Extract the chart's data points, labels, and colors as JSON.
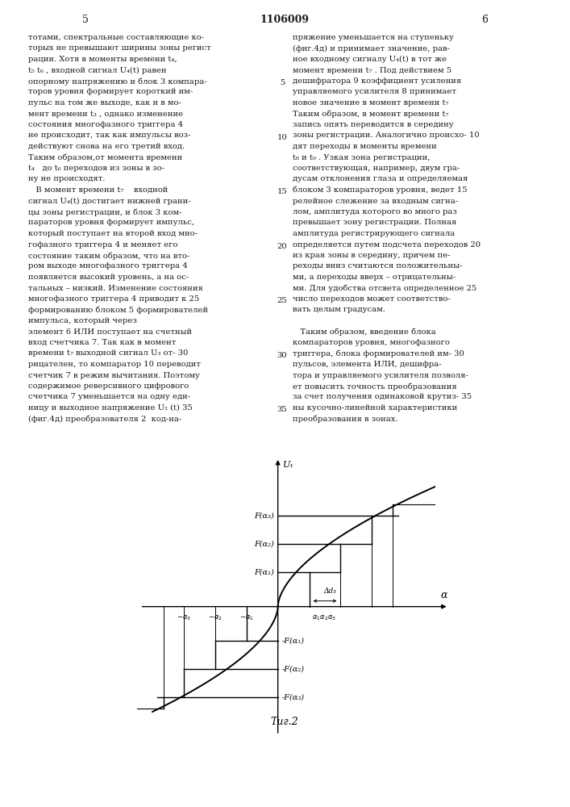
{
  "background_color": "#ffffff",
  "page_number_left": "5",
  "page_number_center": "1106009",
  "page_number_right": "6",
  "fig_caption": "Τиг.2",
  "y_label": "U₁",
  "x_label": "α",
  "delta_label": "Δd₃",
  "F_alpha1_label": "F(α₁)",
  "F_alpha2_label": "F(α₂)",
  "F_alpha3_label": "F(α₃)",
  "neg_F_alpha1_label": "-F(α₁)",
  "neg_F_alpha2_label": "-F(α₂)",
  "neg_F_alpha3_label": "-F(α₃)",
  "line_color": "#000000",
  "text_color": "#1a1a1a",
  "col1_lines": [
    "тотами, спектральные составляющие ко-",
    "торых не превышают ширины зоны регист",
    "рации. Хотя в моменты времени t₄,",
    "t₅ t₆ , входной сигнал U₄(t) равен",
    "опорному напряжению и блок 3 компара-",
    "торов уровня формирует короткий им-",
    "пульс на том же выходе, как и в мо-",
    "мент времени t₃ , однако изменение",
    "состояния многофазного триггера 4",
    "не происходит, так как импульсы воз-",
    "действуют снова на его третий вход.",
    "Таким образом,от момента времени",
    "t₄   до t₆ переходов из зоны в зо-",
    "ну не происходят.",
    "   В момент времени t₇    входной",
    "сигнал U₄(t) достигает нижней грани-",
    "цы зоны регистрации, и блок 3 ком-",
    "параторов уровня формирует импульс,",
    "который поступает на второй вход мно-",
    "гофазного триггера 4 и меняет его",
    "состояние таким образом, что на вто-",
    "ром выходе многофазного триггера 4",
    "появляется высокий уровень, а на ос-",
    "тальных – низкий. Изменение состояния",
    "многофазного триггера 4 приводит к 25",
    "формированию блоком 5 формирователей",
    "импульса, который через",
    "элемент 6 ИЛИ поступает на счетный",
    "вход счетчика 7. Так как в момент",
    "времени t₇ выходной сигнал U₃ от- 30",
    "рицателен, то компаратор 10 переводит",
    "счетчик 7 в режим вычитания. Поэтому",
    "содержимое реверсивного цифрового",
    "счетчика 7 уменьшается на одну еди-",
    "ницу и выходное напряжение U₂ (t) 35",
    "(фиг.4д) преобразователя 2  код-на-"
  ],
  "col2_lines": [
    "пряжение уменьшается на ступеньку",
    "(фиг.4д) и принимает значение, рав-",
    "ное входному сигналу U₄(t) в тот же",
    "момент времени t₇ . Под действием 5",
    "дешифратора 9 коэффициент усиления",
    "управляемого усилителя 8 принимает",
    "новое значение в момент времени t₇",
    "Таким образом, в момент времени t₇",
    "запись опять переводится в середину",
    "зоны регистрации. Аналогично происхо- 10",
    "дят переходы в моменты времени",
    "t₈ и t₉ . Узкая зона регистрации,",
    "соответствующая, например, двум гра-",
    "дусам отклонения глаза и определяемая",
    "блоком 3 компараторов уровня, ведет 15",
    "релейное слежение за входным сигна-",
    "лом, амплитуда которого во много раз",
    "превышает зону регистрации. Полная",
    "амплитуда регистрирующего сигнала",
    "определяется путем подсчета переходов 20",
    "из края зоны в середину, причем пе-",
    "реходы вниз считаются положительны-",
    "ми, а переходы вверх – отрицательны-",
    "ми. Для удобства отсвета определенное 25",
    "число переходов может соответство-",
    "вать целым градусам.",
    "",
    "   Таким образом, введение блока",
    "компараторов уровня, многофазного",
    "триггера, блока формирователей им- 30",
    "пульсов, элемента ИЛИ, дешифра-",
    "тора и управляемого усилителя позволя-",
    "ет повысить точность преобразования",
    "за счет получения одинаковой крутиз- 35",
    "ны кусочно-линейной характеристики",
    "преобразования в зонах."
  ]
}
